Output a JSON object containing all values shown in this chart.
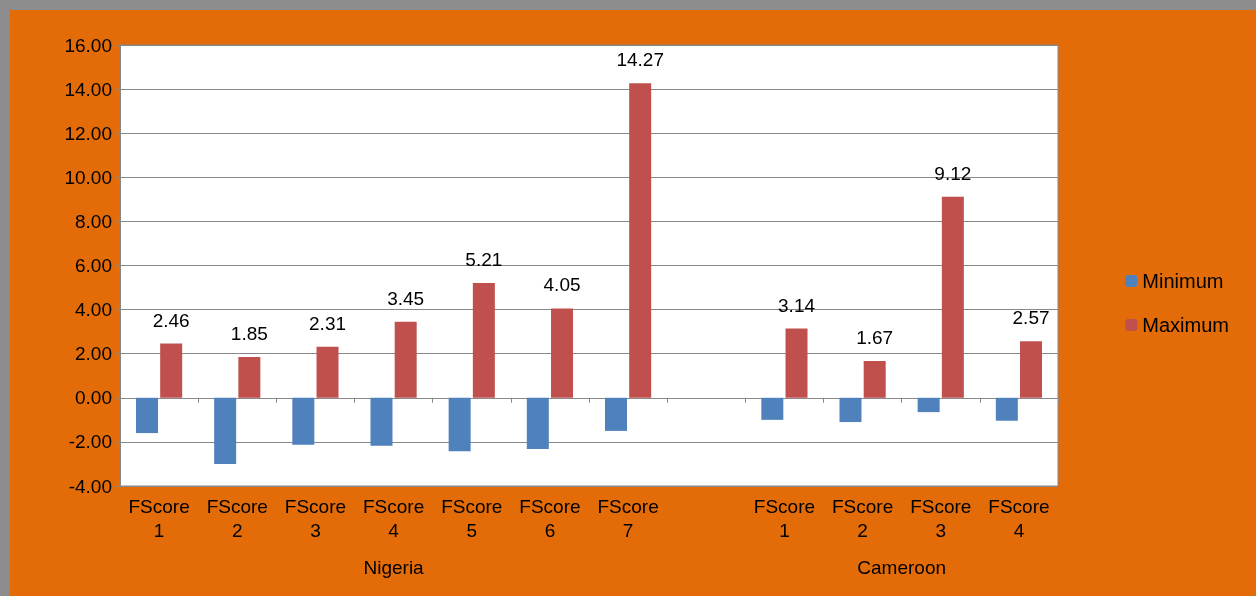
{
  "chart_data": {
    "type": "bar",
    "categories": [
      "FScore 1",
      "FScore 2",
      "FScore 3",
      "FScore 4",
      "FScore 5",
      "FScore 6",
      "FScore 7",
      null,
      "FScore 1",
      "FScore 2",
      "FScore 3",
      "FScore 4"
    ],
    "series": [
      {
        "name": "Minimum",
        "color": "#4f81bd",
        "values": [
          -1.6,
          -3.0,
          -2.13,
          -2.18,
          -2.42,
          -2.32,
          -1.5,
          null,
          -1.0,
          -1.1,
          -0.65,
          -1.04
        ]
      },
      {
        "name": "Maximum",
        "color": "#c0504d",
        "values": [
          2.46,
          1.85,
          2.31,
          3.45,
          5.21,
          4.05,
          14.27,
          null,
          3.14,
          1.67,
          9.12,
          2.57
        ],
        "value_labels": [
          "2.46",
          "1.85",
          "2.31",
          "3.45",
          "5.21",
          "4.05",
          "14.27",
          null,
          "3.14",
          "1.67",
          "9.12",
          "2.57"
        ]
      }
    ],
    "annotations": [
      "Nigeria",
      "Cameroon"
    ],
    "ylim": [
      -4,
      16
    ],
    "yticks": [
      {
        "value": -4,
        "label": "-4.00"
      },
      {
        "value": -2,
        "label": "-2.00"
      },
      {
        "value": 0,
        "label": "0.00"
      },
      {
        "value": 2,
        "label": "2.00"
      },
      {
        "value": 4,
        "label": "4.00"
      },
      {
        "value": 6,
        "label": "6.00"
      },
      {
        "value": 8,
        "label": "8.00"
      },
      {
        "value": 10,
        "label": "10.00"
      },
      {
        "value": 12,
        "label": "12.00"
      },
      {
        "value": 14,
        "label": "14.00"
      },
      {
        "value": 16,
        "label": "16.00"
      }
    ],
    "grid": "y",
    "legend": "right"
  }
}
